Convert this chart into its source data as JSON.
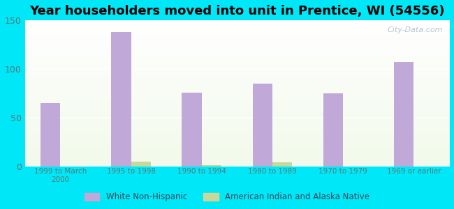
{
  "title": "Year householders moved into unit in Prentice, WI (54556)",
  "categories": [
    "1999 to March\n2000",
    "1995 to 1998",
    "1990 to 1994",
    "1980 to 1989",
    "1970 to 1979",
    "1969 or earlier"
  ],
  "white_values": [
    65,
    138,
    76,
    85,
    75,
    107
  ],
  "native_values": [
    0,
    5,
    1,
    4,
    0,
    0
  ],
  "white_color": "#c0a8d8",
  "native_color": "#c8d89a",
  "background_outer": "#00e8f8",
  "background_inner_start": "#e8f8e8",
  "background_inner_end": "#f8fff8",
  "ylim": [
    0,
    150
  ],
  "yticks": [
    0,
    50,
    100,
    150
  ],
  "bar_width": 0.28,
  "title_fontsize": 13,
  "watermark": "City-Data.com",
  "tick_color": "#557777",
  "legend_label_color": "#334455"
}
